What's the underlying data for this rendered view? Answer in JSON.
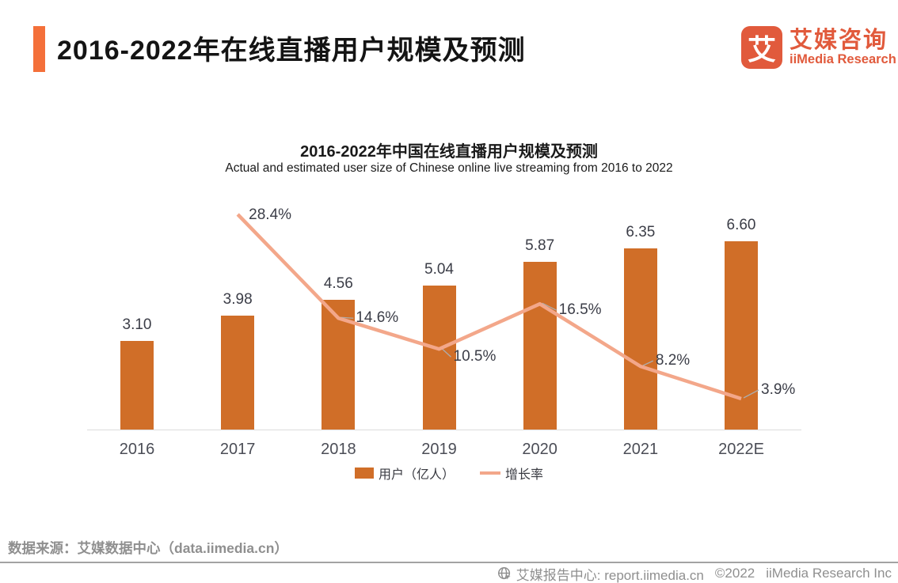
{
  "header": {
    "title": "2016-2022年在线直播用户规模及预测",
    "logo": {
      "mark_char": "艾",
      "name_cn": "艾媒咨询",
      "name_en": "iiMedia Research"
    }
  },
  "chart_data": {
    "type": "bar",
    "title": "2016-2022年中国在线直播用户规模及预测",
    "subtitle": "Actual and estimated user size of Chinese online live streaming from 2016 to 2022",
    "categories": [
      "2016",
      "2017",
      "2018",
      "2019",
      "2020",
      "2021",
      "2022E"
    ],
    "series": [
      {
        "name": "用户（亿人）",
        "type": "bar",
        "values": [
          3.1,
          3.98,
          4.56,
          5.04,
          5.87,
          6.35,
          6.6
        ],
        "color": "#D06E28"
      },
      {
        "name": "增长率",
        "type": "line",
        "unit": "%",
        "values": [
          null,
          28.4,
          14.6,
          10.5,
          16.5,
          8.2,
          3.9
        ],
        "color": "#F3A78A"
      }
    ],
    "ylim": [
      0,
      7
    ],
    "grid": false,
    "value_labels": true,
    "legend_position": "bottom"
  },
  "footer": {
    "source": "数据来源：艾媒数据中心（data.iimedia.cn）",
    "site_label": "艾媒报告中心: report.iimedia.cn",
    "copyright": "©2022",
    "company": "iiMedia Research Inc"
  },
  "colors": {
    "accent": "#F4703A",
    "brand": "#E15A3C",
    "bar": "#D06E28",
    "line": "#F3A78A",
    "axis": "#DCDCDC",
    "label_dark": "#3B3D47",
    "xlabel": "#4B4D56",
    "muted": "#8F8F8F",
    "divider": "#A3A3A3",
    "connector": "#ADADAD"
  }
}
